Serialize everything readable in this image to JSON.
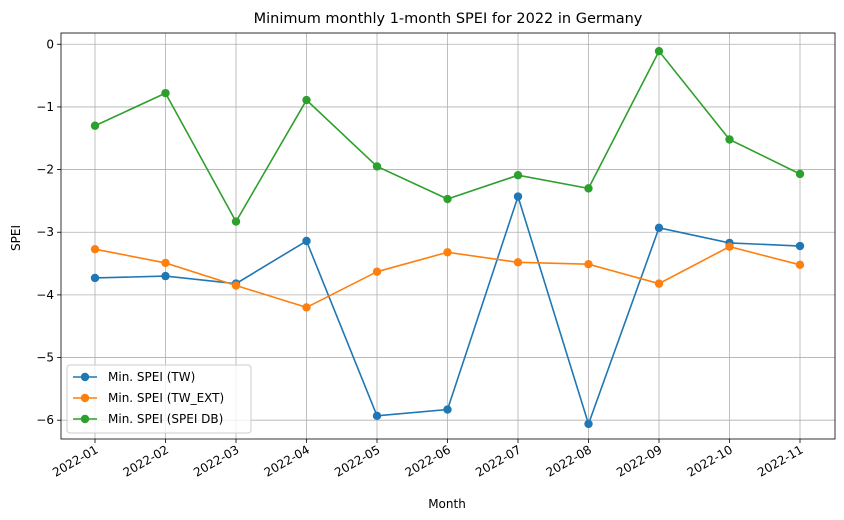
{
  "chart_data": {
    "type": "line",
    "title": "Minimum monthly 1-month SPEI for 2022 in Germany",
    "xlabel": "Month",
    "ylabel": "SPEI",
    "categories": [
      "2022-01",
      "2022-02",
      "2022-03",
      "2022-04",
      "2022-05",
      "2022-06",
      "2022-07",
      "2022-08",
      "2022-09",
      "2022-10",
      "2022-11"
    ],
    "yticks": [
      0,
      -1,
      -2,
      -3,
      -4,
      -5,
      -6
    ],
    "ytick_labels": [
      "0",
      "−1",
      "−2",
      "−3",
      "−4",
      "−5",
      "−6"
    ],
    "ylim": [
      -6.3,
      0.18
    ],
    "grid": true,
    "legend_position": "lower-left",
    "series": [
      {
        "name": "Min. SPEI (TW)",
        "color": "#1f77b4",
        "values": [
          -3.73,
          -3.7,
          -3.82,
          -3.14,
          -5.93,
          -5.83,
          -2.43,
          -6.06,
          -2.93,
          -3.17,
          -3.22
        ]
      },
      {
        "name": "Min. SPEI (TW_EXT)",
        "color": "#ff7f0e",
        "values": [
          -3.27,
          -3.49,
          -3.85,
          -4.2,
          -3.63,
          -3.32,
          -3.48,
          -3.51,
          -3.82,
          -3.23,
          -3.52
        ]
      },
      {
        "name": "Min. SPEI (SPEI DB)",
        "color": "#2ca02c",
        "values": [
          -1.3,
          -0.78,
          -2.83,
          -0.89,
          -1.95,
          -2.47,
          -2.09,
          -2.3,
          -0.11,
          -1.52,
          -2.07
        ]
      }
    ]
  }
}
